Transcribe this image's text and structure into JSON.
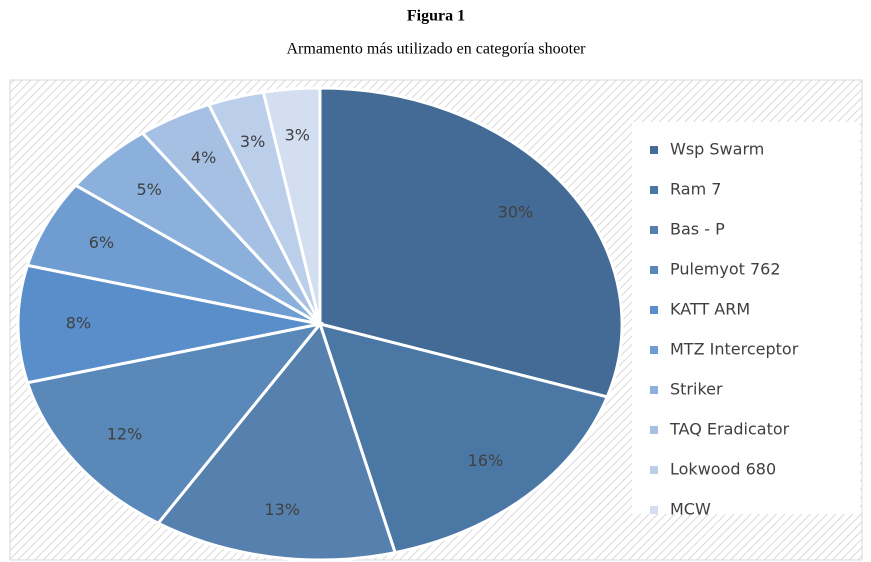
{
  "chart_data": {
    "type": "pie",
    "title": "Figura 1",
    "subtitle": "Armamento más utilizado en categoría shooter",
    "categories": [
      "Wsp Swarm",
      "Ram 7",
      "Bas - P",
      "Pulemyot 762",
      "KATT ARM",
      "MTZ Interceptor",
      "Striker",
      "TAQ Eradicator",
      "Lokwood 680",
      "MCW"
    ],
    "values": [
      30,
      16,
      13,
      12,
      8,
      6,
      5,
      4,
      3,
      3
    ],
    "value_labels": [
      "30%",
      "16%",
      "13%",
      "12%",
      "8%",
      "6%",
      "5%",
      "4%",
      "3%",
      "3%"
    ],
    "colors": [
      "#436b95",
      "#4b77a4",
      "#5680ad",
      "#5a88b9",
      "#5a8ecb",
      "#6f9dd1",
      "#8cb0dc",
      "#a5c0e3",
      "#bccfea",
      "#d3dff0"
    ],
    "legend": "right"
  }
}
